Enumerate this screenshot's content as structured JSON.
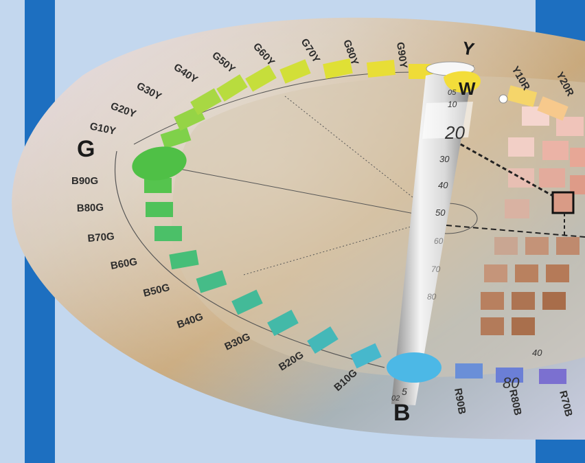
{
  "figure": {
    "ring_labels_left": [
      "G10Y",
      "G20Y",
      "G30Y",
      "G40Y",
      "G50Y",
      "G60Y",
      "G70Y",
      "G80Y",
      "G90Y"
    ],
    "ring_labels_top_right": [
      "Y10R",
      "Y20R"
    ],
    "ring_labels_bottom_left": [
      "B90G",
      "B80G",
      "B70G",
      "B60G",
      "B50G",
      "B40G",
      "B30G",
      "B20G",
      "B10G"
    ],
    "ring_labels_bottom_right": [
      "R90B",
      "R80B",
      "R70B"
    ],
    "primary_labels": {
      "green": "G",
      "yellow": "Y",
      "white": "W",
      "blue": "B"
    },
    "blackness_scale": [
      "05",
      "10",
      "20",
      "30",
      "40",
      "50",
      "60",
      "70",
      "80"
    ],
    "extra_marks": [
      "40",
      "80",
      "02",
      "5"
    ],
    "colors": {
      "background": "#c3d7ee",
      "side_bars": "#1d6fc0",
      "green_primary": "#4fc046",
      "blue_primary": "#4cb8e6",
      "yellow_primary": "#f3dd3a"
    }
  }
}
